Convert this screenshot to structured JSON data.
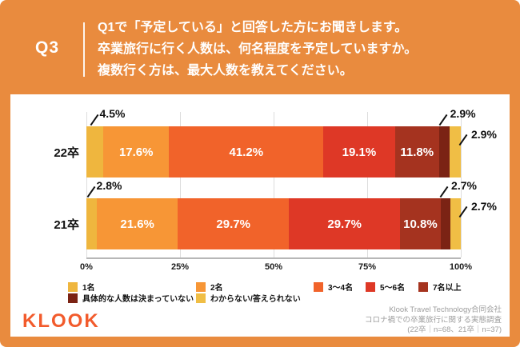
{
  "colors": {
    "background": "#E98B3E",
    "panel": "#FFFFFF",
    "brand": "#F25B2C",
    "grid": "#DDDDDD",
    "axis_line": "#B7B7B7",
    "text": "#111111",
    "muted": "#9D9D9D"
  },
  "header": {
    "badge": "Q3",
    "lines": [
      "Q1で「予定している」と回答した方にお聞きします。",
      "卒業旅行に行く人数は、何名程度を予定していますか。",
      "複数行く方は、最大人数を教えてください。"
    ]
  },
  "chart_data": {
    "type": "bar",
    "orientation": "horizontal",
    "stacked": true,
    "unit": "%",
    "categories": [
      "22卒",
      "21卒"
    ],
    "series": [
      {
        "name": "1名",
        "color": "#EFB63E",
        "values": [
          4.5,
          2.8
        ]
      },
      {
        "name": "2名",
        "color": "#F79636",
        "values": [
          17.6,
          21.6
        ]
      },
      {
        "name": "3〜4名",
        "color": "#F1632A",
        "values": [
          41.2,
          29.7
        ]
      },
      {
        "name": "5〜6名",
        "color": "#DE3826",
        "values": [
          19.1,
          29.7
        ]
      },
      {
        "name": "7名以上",
        "color": "#A5331F",
        "values": [
          11.8,
          10.8
        ]
      },
      {
        "name": "具体的な人数は決まっていない",
        "color": "#7B2314",
        "values": [
          2.9,
          2.7
        ]
      },
      {
        "name": "わからない/答えられない",
        "color": "#F0BE45",
        "values": [
          2.9,
          2.7
        ]
      }
    ],
    "x_ticks": [
      "0%",
      "25%",
      "50%",
      "75%",
      "100%"
    ],
    "xlim": [
      0,
      100
    ],
    "grid": true,
    "legend_position": "bottom",
    "value_labels": "inside segments >=10%, callouts for small segments"
  },
  "footer": {
    "logo": "KLOOK",
    "source_lines": [
      "Klook Travel Technology合同会社",
      "コロナ禍での卒業旅行に関する実態調査",
      "(22卒｜n=68、21卒｜n=37)"
    ]
  }
}
